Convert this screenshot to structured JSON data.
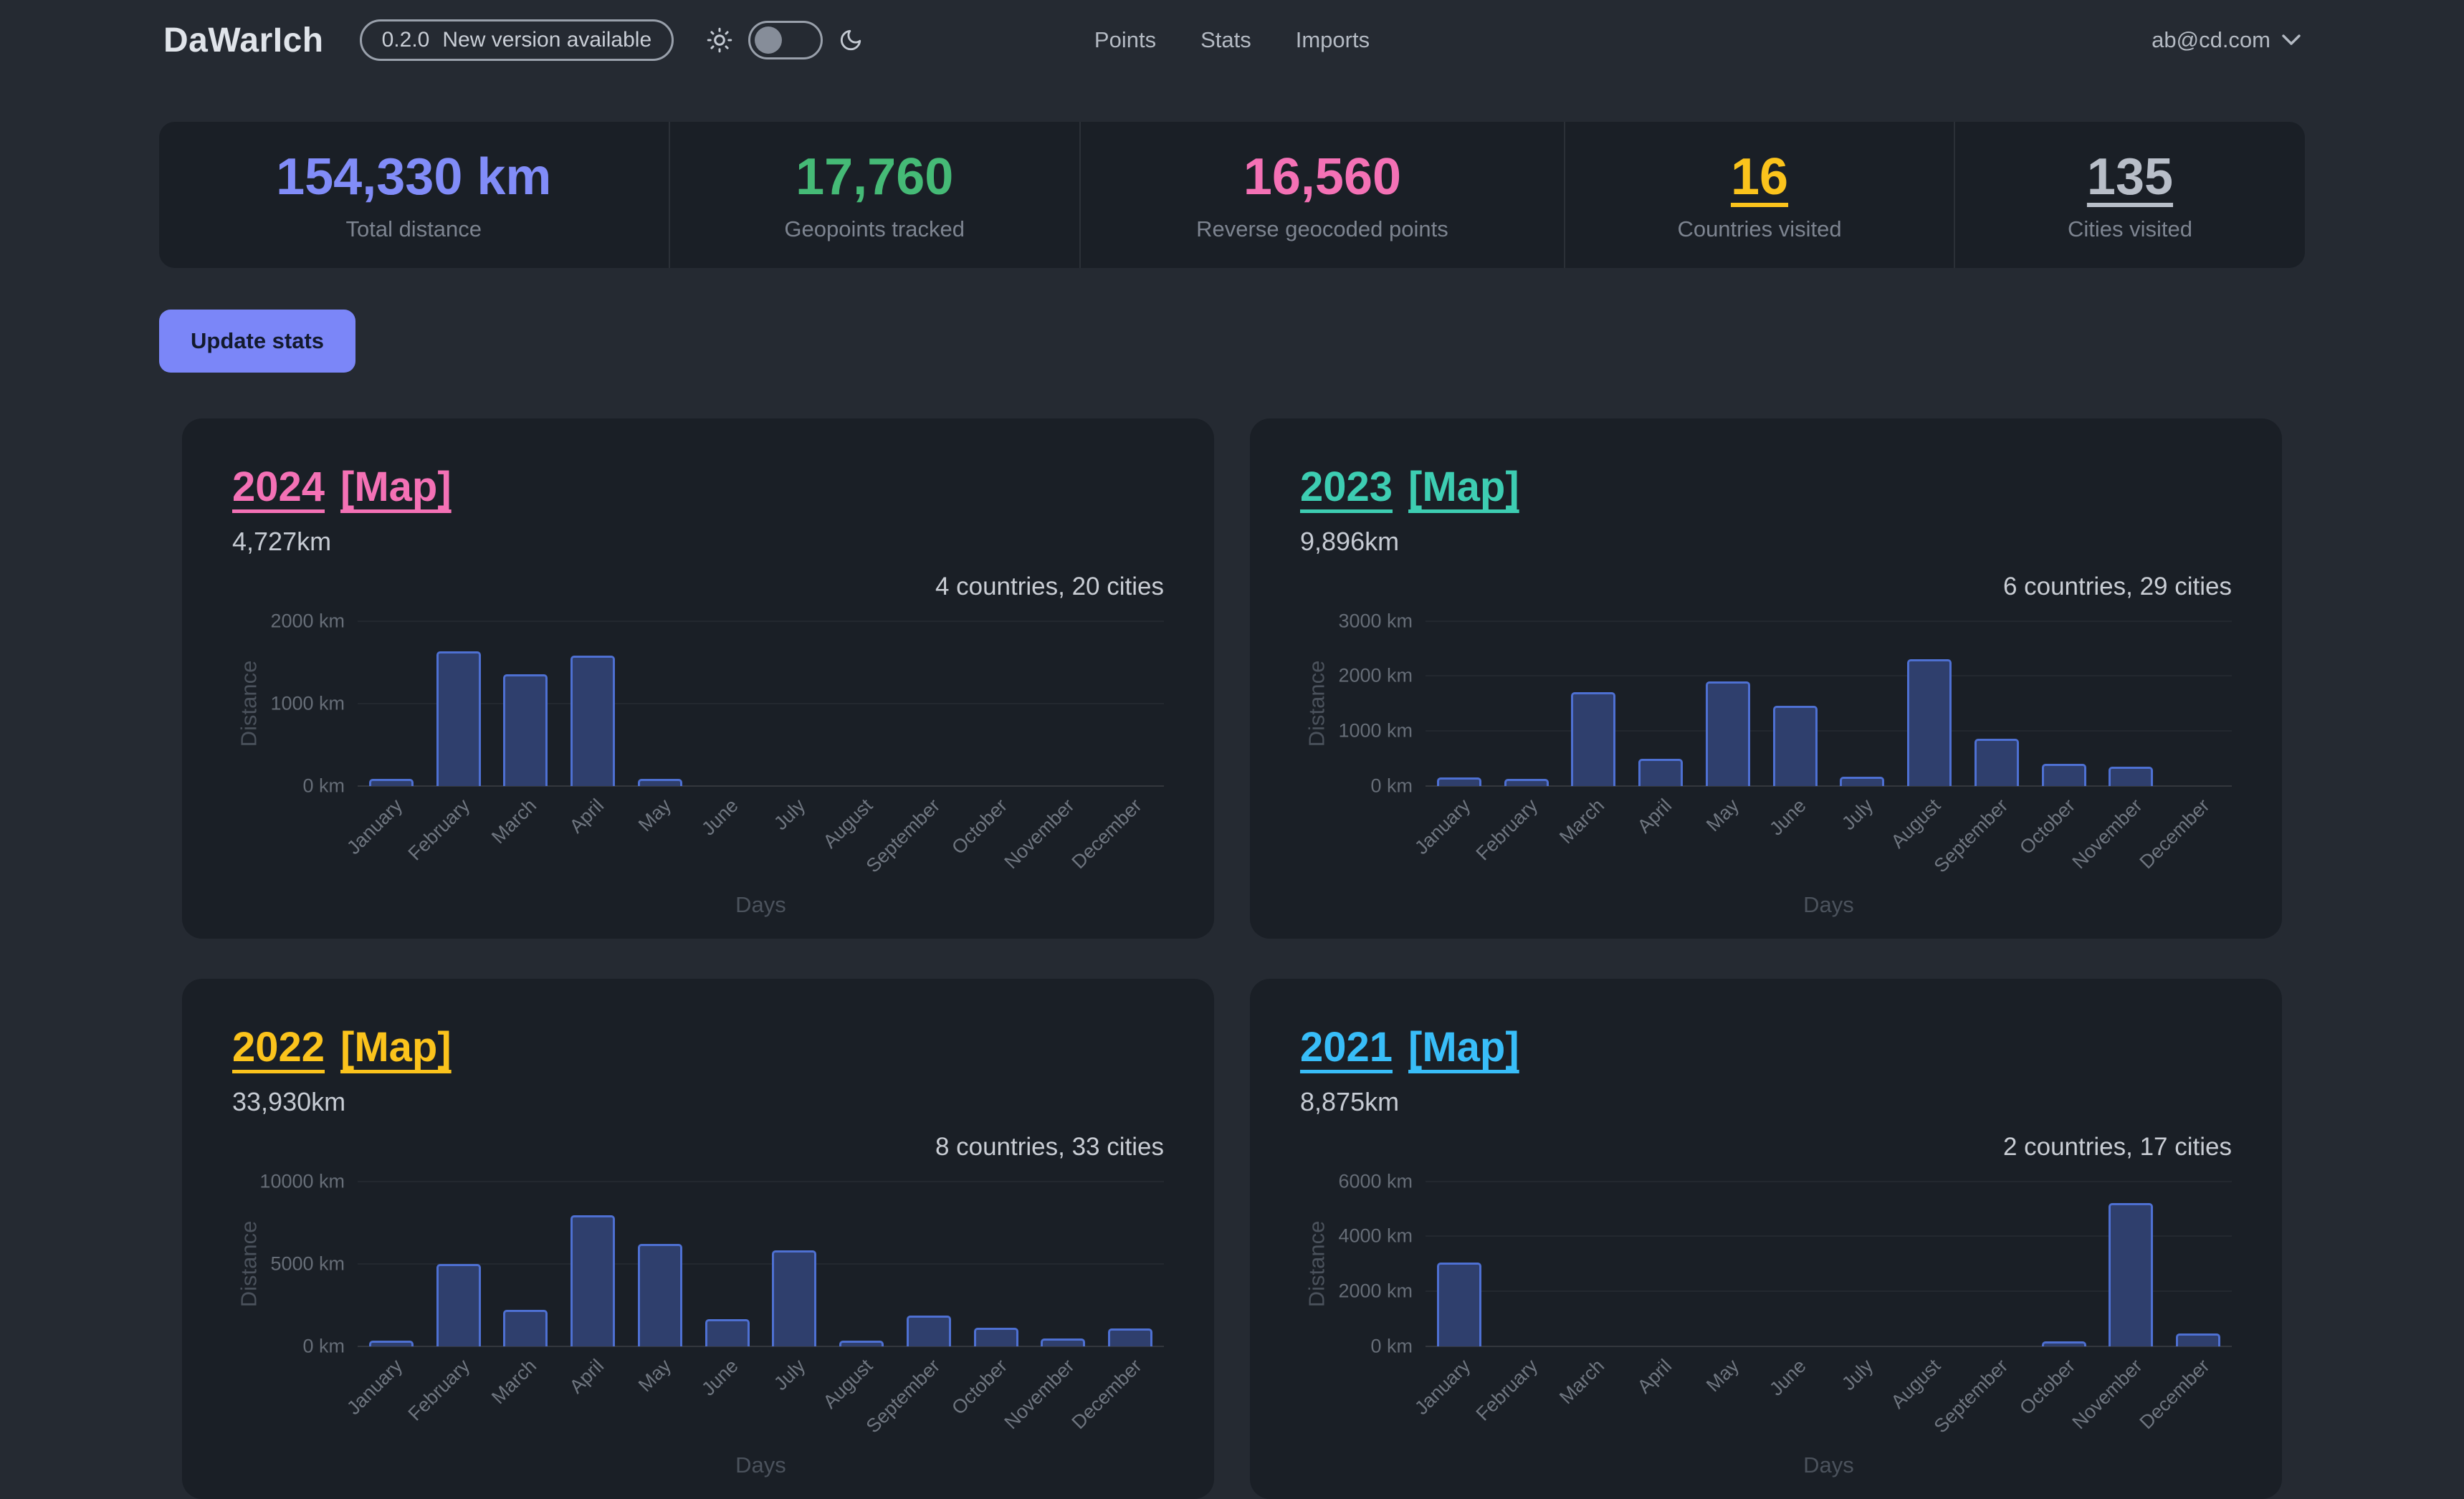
{
  "header": {
    "app_name": "DaWarIch",
    "version_badge": {
      "version": "0.2.0",
      "message": "New version available"
    },
    "nav": {
      "points": "Points",
      "stats": "Stats",
      "imports": "Imports"
    },
    "user_menu": {
      "email": "ab@cd.com"
    }
  },
  "stats": {
    "items": [
      {
        "value": "154,330 km",
        "label": "Total distance",
        "color": "#818cf8"
      },
      {
        "value": "17,760",
        "label": "Geopoints tracked",
        "color": "#45ba76"
      },
      {
        "value": "16,560",
        "label": "Reverse geocoded points",
        "color": "#f471b5"
      },
      {
        "value": "16",
        "label": "Countries visited",
        "color": "#fbc31c"
      },
      {
        "value": "135",
        "label": "Cities visited",
        "color": "#b8bec8"
      }
    ]
  },
  "actions": {
    "update_stats": "Update stats"
  },
  "years": [
    {
      "year": "2024",
      "map_label": "[Map]",
      "distance": "4,727km",
      "summary": "4 countries, 20 cities",
      "accent_color": "#f471b5"
    },
    {
      "year": "2023",
      "map_label": "[Map]",
      "distance": "9,896km",
      "summary": "6 countries, 29 cities",
      "accent_color": "#3dcdb2"
    },
    {
      "year": "2022",
      "map_label": "[Map]",
      "distance": "33,930km",
      "summary": "8 countries, 33 cities",
      "accent_color": "#fbc31c"
    },
    {
      "year": "2021",
      "map_label": "[Map]",
      "distance": "8,875km",
      "summary": "2 countries, 17 cities",
      "accent_color": "#38bdf8"
    }
  ],
  "chart_data": [
    {
      "type": "bar",
      "title": "2024",
      "categories": [
        "January",
        "February",
        "March",
        "April",
        "May",
        "June",
        "July",
        "August",
        "September",
        "October",
        "November",
        "December"
      ],
      "values": [
        85,
        1630,
        1350,
        1580,
        82,
        0,
        0,
        0,
        0,
        0,
        0,
        0
      ],
      "xlabel": "Days",
      "ylabel": "Distance",
      "ylim": [
        0,
        2000
      ],
      "yticks": {
        "values": [
          0,
          1000,
          2000
        ],
        "labels": [
          "0 km",
          "1000 km",
          "2000 km"
        ]
      },
      "bar_fill": "#2f3f6d",
      "bar_border": "#4e70d2"
    },
    {
      "type": "bar",
      "title": "2023",
      "categories": [
        "January",
        "February",
        "March",
        "April",
        "May",
        "June",
        "July",
        "August",
        "September",
        "October",
        "November",
        "December"
      ],
      "values": [
        150,
        120,
        1700,
        490,
        1900,
        1460,
        160,
        2310,
        860,
        400,
        346,
        0
      ],
      "xlabel": "Days",
      "ylabel": "Distance",
      "ylim": [
        0,
        3000
      ],
      "yticks": {
        "values": [
          0,
          1000,
          2000,
          3000
        ],
        "labels": [
          "0 km",
          "1000 km",
          "2000 km",
          "3000 km"
        ]
      },
      "bar_fill": "#2f3f6d",
      "bar_border": "#4e70d2"
    },
    {
      "type": "bar",
      "title": "2022",
      "categories": [
        "January",
        "February",
        "March",
        "April",
        "May",
        "June",
        "July",
        "August",
        "September",
        "October",
        "November",
        "December"
      ],
      "values": [
        350,
        5000,
        2200,
        7950,
        6200,
        1650,
        5800,
        330,
        1850,
        1100,
        450,
        1050
      ],
      "xlabel": "Days",
      "ylabel": "Distance",
      "ylim": [
        0,
        10000
      ],
      "yticks": {
        "values": [
          0,
          5000,
          10000
        ],
        "labels": [
          "0 km",
          "5000 km",
          "10000 km"
        ]
      },
      "bar_fill": "#2f3f6d",
      "bar_border": "#4e70d2"
    },
    {
      "type": "bar",
      "title": "2021",
      "categories": [
        "January",
        "February",
        "March",
        "April",
        "May",
        "June",
        "July",
        "August",
        "September",
        "October",
        "November",
        "December"
      ],
      "values": [
        3050,
        0,
        0,
        0,
        0,
        0,
        0,
        0,
        0,
        175,
        5200,
        450
      ],
      "xlabel": "Days",
      "ylabel": "Distance",
      "ylim": [
        0,
        6000
      ],
      "yticks": {
        "values": [
          0,
          2000,
          4000,
          6000
        ],
        "labels": [
          "0 km",
          "2000 km",
          "4000 km",
          "6000 km"
        ]
      },
      "bar_fill": "#2f3f6d",
      "bar_border": "#4e70d2"
    }
  ]
}
